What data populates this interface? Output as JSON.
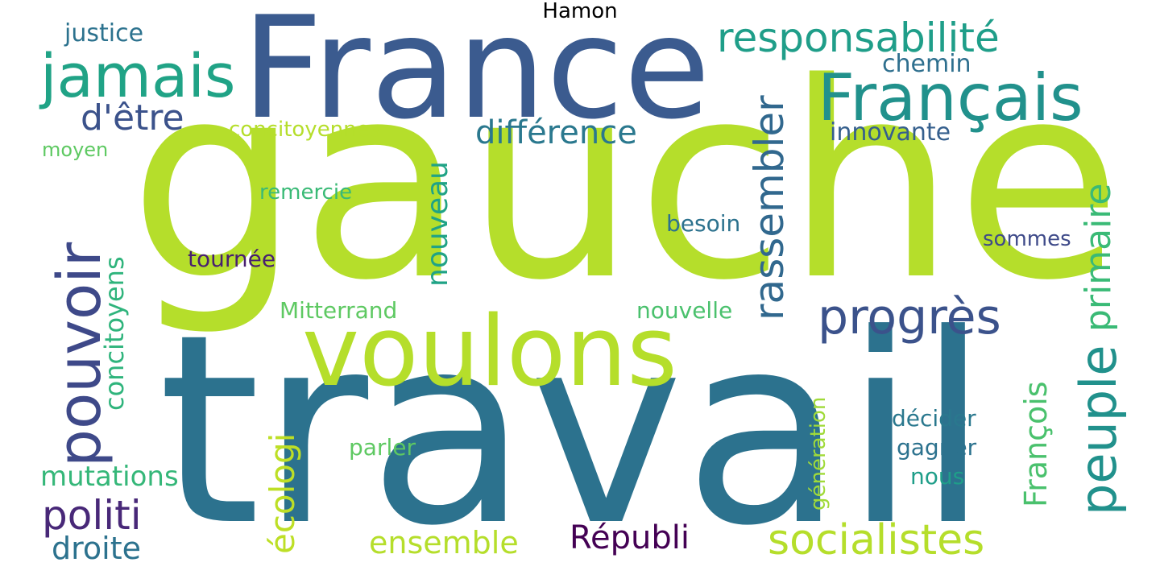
{
  "title": "Hamon",
  "words": [
    {
      "text": "gauche",
      "color": "#b5de2b"
    },
    {
      "text": "travail",
      "color": "#2c728e"
    },
    {
      "text": "France",
      "color": "#3b5b8f"
    },
    {
      "text": "voulons",
      "color": "#b5de2b"
    },
    {
      "text": "Français",
      "color": "#21918c"
    },
    {
      "text": "jamais",
      "color": "#20a386"
    },
    {
      "text": "responsabilité",
      "color": "#1f9e89"
    },
    {
      "text": "pouvoir",
      "color": "#3e4989"
    },
    {
      "text": "progrès",
      "color": "#3b528b"
    },
    {
      "text": "peuple",
      "color": "#21918c"
    },
    {
      "text": "rassembler",
      "color": "#31688e"
    },
    {
      "text": "primaire",
      "color": "#3aba76"
    },
    {
      "text": "socialistes",
      "color": "#b5de2b"
    },
    {
      "text": "politi",
      "color": "#482878"
    },
    {
      "text": "différence",
      "color": "#2a788e"
    },
    {
      "text": "d'être",
      "color": "#3b528b"
    },
    {
      "text": "écologi",
      "color": "#bddf26"
    },
    {
      "text": "Républi",
      "color": "#440154"
    },
    {
      "text": "ensemble",
      "color": "#b5de2b"
    },
    {
      "text": "concitoyens",
      "color": "#2fb47c"
    },
    {
      "text": "droite",
      "color": "#2c728e"
    },
    {
      "text": "mutations",
      "color": "#35b779"
    },
    {
      "text": "François",
      "color": "#4ac16d"
    },
    {
      "text": "nouveau",
      "color": "#20a386"
    },
    {
      "text": "justice",
      "color": "#2c728e"
    },
    {
      "text": "chemin",
      "color": "#2e6f8e"
    },
    {
      "text": "innovante",
      "color": "#355f8d"
    },
    {
      "text": "concitoyennes",
      "color": "#b5de2b"
    },
    {
      "text": "moyen",
      "color": "#5ec962"
    },
    {
      "text": "remercie",
      "color": "#3aba76"
    },
    {
      "text": "besoin",
      "color": "#2c728e"
    },
    {
      "text": "sommes",
      "color": "#3e4a89"
    },
    {
      "text": "tournée",
      "color": "#481f70"
    },
    {
      "text": "Mitterrand",
      "color": "#5ec962"
    },
    {
      "text": "nouvelle",
      "color": "#4ac16d"
    },
    {
      "text": "génération",
      "color": "#a0da39"
    },
    {
      "text": "décider",
      "color": "#2a788e"
    },
    {
      "text": "parler",
      "color": "#5ec962"
    },
    {
      "text": "gagner",
      "color": "#2c728e"
    },
    {
      "text": "nous",
      "color": "#1f9e89"
    }
  ]
}
